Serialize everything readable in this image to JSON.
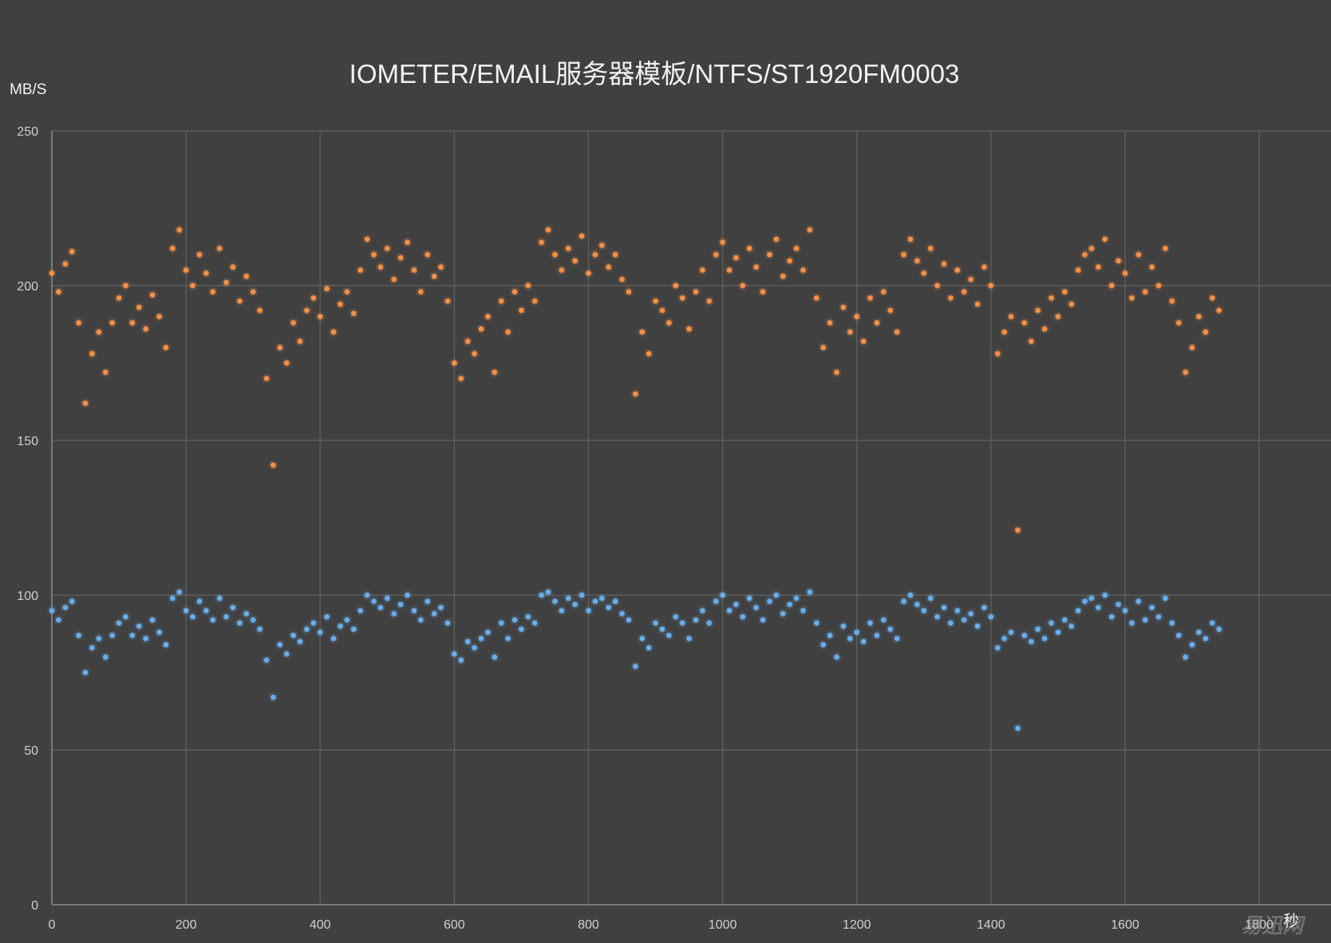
{
  "chart_data": {
    "type": "scatter",
    "title": "IOMETER/EMAIL服务器模板/NTFS/ST1920FM0003",
    "ylabel": "MB/S",
    "xlabel": "秒",
    "xlim": [
      0,
      1900
    ],
    "ylim": [
      0,
      250
    ],
    "xticks": [
      "0",
      "200",
      "400",
      "600",
      "800",
      "1000",
      "1200",
      "1400",
      "1600",
      "1800"
    ],
    "yticks": [
      "0",
      "50",
      "100",
      "150",
      "200",
      "250"
    ],
    "grid": true,
    "x": [
      0,
      10,
      20,
      30,
      40,
      50,
      60,
      70,
      80,
      90,
      100,
      110,
      120,
      130,
      140,
      150,
      160,
      170,
      180,
      190,
      200,
      210,
      220,
      230,
      240,
      250,
      260,
      270,
      280,
      290,
      300,
      310,
      320,
      330,
      340,
      350,
      360,
      370,
      380,
      390,
      400,
      410,
      420,
      430,
      440,
      450,
      460,
      470,
      480,
      490,
      500,
      510,
      520,
      530,
      540,
      550,
      560,
      570,
      580,
      590,
      600,
      610,
      620,
      630,
      640,
      650,
      660,
      670,
      680,
      690,
      700,
      710,
      720,
      730,
      740,
      750,
      760,
      770,
      780,
      790,
      800,
      810,
      820,
      830,
      840,
      850,
      860,
      870,
      880,
      890,
      900,
      910,
      920,
      930,
      940,
      950,
      960,
      970,
      980,
      990,
      1000,
      1010,
      1020,
      1030,
      1040,
      1050,
      1060,
      1070,
      1080,
      1090,
      1100,
      1110,
      1120,
      1130,
      1140,
      1150,
      1160,
      1170,
      1180,
      1190,
      1200,
      1210,
      1220,
      1230,
      1240,
      1250,
      1260,
      1270,
      1280,
      1290,
      1300,
      1310,
      1320,
      1330,
      1340,
      1350,
      1360,
      1370,
      1380,
      1390,
      1400,
      1410,
      1420,
      1430,
      1440,
      1450,
      1460,
      1470,
      1480,
      1490,
      1500,
      1510,
      1520,
      1530,
      1540,
      1550,
      1560,
      1570,
      1580,
      1590,
      1600,
      1610,
      1620,
      1630,
      1640,
      1650,
      1660,
      1670,
      1680,
      1690,
      1700,
      1710,
      1720,
      1730,
      1740
    ],
    "series": [
      {
        "color": "#f39148",
        "values": [
          204,
          198,
          207,
          211,
          188,
          162,
          178,
          185,
          172,
          188,
          196,
          200,
          188,
          193,
          186,
          197,
          190,
          180,
          212,
          218,
          205,
          200,
          210,
          204,
          198,
          212,
          201,
          206,
          195,
          203,
          198,
          192,
          170,
          142,
          180,
          175,
          188,
          182,
          192,
          196,
          190,
          199,
          185,
          194,
          198,
          191,
          205,
          215,
          210,
          206,
          212,
          202,
          209,
          214,
          205,
          198,
          210,
          203,
          206,
          195,
          175,
          170,
          182,
          178,
          186,
          190,
          172,
          195,
          185,
          198,
          192,
          200,
          195,
          214,
          218,
          210,
          205,
          212,
          208,
          216,
          204,
          210,
          213,
          206,
          210,
          202,
          198,
          165,
          185,
          178,
          195,
          192,
          188,
          200,
          196,
          186,
          198,
          205,
          195,
          210,
          214,
          205,
          209,
          200,
          212,
          206,
          198,
          210,
          215,
          203,
          208,
          212,
          205,
          218,
          196,
          180,
          188,
          172,
          193,
          185,
          190,
          182,
          196,
          188,
          198,
          192,
          185,
          210,
          215,
          208,
          204,
          212,
          200,
          207,
          196,
          205,
          198,
          202,
          194,
          206,
          200,
          178,
          185,
          190,
          121,
          188,
          182,
          192,
          186,
          196,
          190,
          198,
          194,
          205,
          210,
          212,
          206,
          215,
          200,
          208,
          204,
          196,
          210,
          198,
          206,
          200,
          212,
          195,
          188,
          172,
          180,
          190,
          185,
          196,
          192
        ]
      },
      {
        "color": "#6aaeea",
        "values": [
          95,
          92,
          96,
          98,
          87,
          75,
          83,
          86,
          80,
          87,
          91,
          93,
          87,
          90,
          86,
          92,
          88,
          84,
          99,
          101,
          95,
          93,
          98,
          95,
          92,
          99,
          93,
          96,
          91,
          94,
          92,
          89,
          79,
          67,
          84,
          81,
          87,
          85,
          89,
          91,
          88,
          93,
          86,
          90,
          92,
          89,
          95,
          100,
          98,
          96,
          99,
          94,
          97,
          100,
          95,
          92,
          98,
          94,
          96,
          91,
          81,
          79,
          85,
          83,
          86,
          88,
          80,
          91,
          86,
          92,
          89,
          93,
          91,
          100,
          101,
          98,
          95,
          99,
          97,
          100,
          95,
          98,
          99,
          96,
          98,
          94,
          92,
          77,
          86,
          83,
          91,
          89,
          87,
          93,
          91,
          86,
          92,
          95,
          91,
          98,
          100,
          95,
          97,
          93,
          99,
          96,
          92,
          98,
          100,
          94,
          97,
          99,
          95,
          101,
          91,
          84,
          87,
          80,
          90,
          86,
          88,
          85,
          91,
          87,
          92,
          89,
          86,
          98,
          100,
          97,
          95,
          99,
          93,
          96,
          91,
          95,
          92,
          94,
          90,
          96,
          93,
          83,
          86,
          88,
          57,
          87,
          85,
          89,
          86,
          91,
          88,
          92,
          90,
          95,
          98,
          99,
          96,
          100,
          93,
          97,
          95,
          91,
          98,
          92,
          96,
          93,
          99,
          91,
          87,
          80,
          84,
          88,
          86,
          91,
          89
        ]
      }
    ]
  },
  "watermark": "易迅网"
}
